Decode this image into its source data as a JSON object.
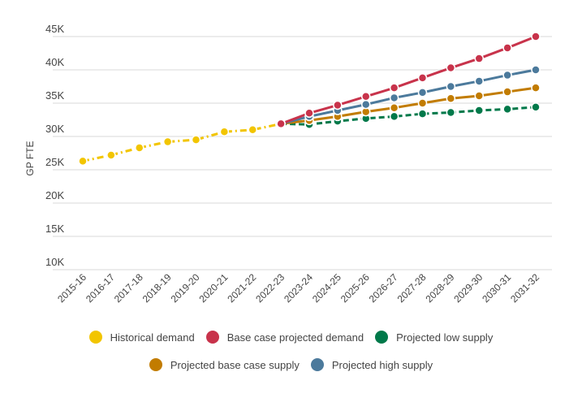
{
  "chart_data": {
    "type": "line",
    "ylabel": "GP FTE",
    "xlabel": "",
    "ylim": [
      10000,
      45000
    ],
    "yticks": [
      10000,
      15000,
      20000,
      25000,
      30000,
      35000,
      40000,
      45000
    ],
    "ytick_labels": [
      "10K",
      "15K",
      "20K",
      "25K",
      "30K",
      "35K",
      "40K",
      "45K"
    ],
    "grid": true,
    "legend_position": "bottom",
    "categories": [
      "2015-16",
      "2016-17",
      "2017-18",
      "2018-19",
      "2019-20",
      "2020-21",
      "2021-22",
      "2022-23",
      "2023-24",
      "2024-25",
      "2025-26",
      "2026-27",
      "2027-28",
      "2028-29",
      "2029-30",
      "2030-31",
      "2031-32"
    ],
    "series": [
      {
        "name": "Historical demand",
        "color": "#F2C500",
        "style": "dashdot",
        "values": [
          26300,
          27200,
          28300,
          29200,
          29500,
          30700,
          31000,
          31900,
          null,
          null,
          null,
          null,
          null,
          null,
          null,
          null,
          null
        ]
      },
      {
        "name": "Base case projected demand",
        "color": "#C8334B",
        "style": "solid",
        "values": [
          null,
          null,
          null,
          null,
          null,
          null,
          null,
          31900,
          33500,
          34700,
          36000,
          37300,
          38800,
          40300,
          41700,
          43300,
          45000
        ]
      },
      {
        "name": "Projected low supply",
        "color": "#00794A",
        "style": "dashed",
        "values": [
          null,
          null,
          null,
          null,
          null,
          null,
          null,
          31900,
          31800,
          32300,
          32700,
          33000,
          33400,
          33600,
          33900,
          34100,
          34400
        ]
      },
      {
        "name": "Projected base case supply",
        "color": "#C27C00",
        "style": "solid",
        "values": [
          null,
          null,
          null,
          null,
          null,
          null,
          null,
          31900,
          32400,
          33000,
          33700,
          34300,
          35000,
          35700,
          36100,
          36700,
          37300
        ]
      },
      {
        "name": "Projected high supply",
        "color": "#4C7A9C",
        "style": "solid",
        "values": [
          null,
          null,
          null,
          null,
          null,
          null,
          null,
          31900,
          33000,
          33900,
          34800,
          35800,
          36600,
          37500,
          38300,
          39200,
          40000
        ]
      }
    ]
  },
  "legend_rows": [
    [
      0,
      1,
      2
    ],
    [
      3,
      4
    ]
  ]
}
